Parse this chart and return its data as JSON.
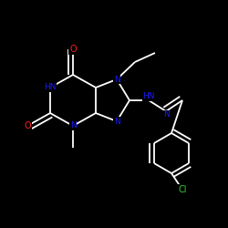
{
  "background_color": "#000000",
  "bond_color": "#ffffff",
  "atom_colors": {
    "N": "#1a1aff",
    "O": "#ff2020",
    "Cl": "#33cc33",
    "C": "#ffffff",
    "H": "#ffffff"
  },
  "figsize": [
    2.5,
    2.5
  ],
  "dpi": 100,
  "bond_lw": 1.3,
  "font_size": 6.5
}
